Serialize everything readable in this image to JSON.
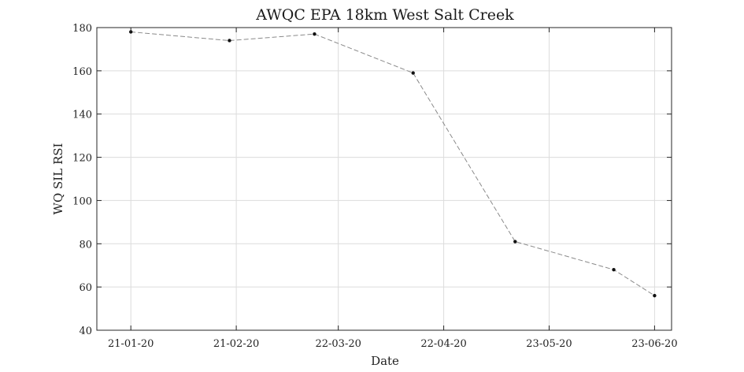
{
  "chart_data": {
    "type": "line",
    "title": "AWQC EPA 18km West Salt Creek",
    "xlabel": "Date",
    "ylabel": "WQ SIL RSI",
    "x_type": "date",
    "xlim": [
      "2020-01-11",
      "2020-06-28"
    ],
    "ylim": [
      40,
      180
    ],
    "grid": true,
    "x_ticks": [
      {
        "date": "2020-01-21",
        "label": "21-01-20"
      },
      {
        "date": "2020-02-21",
        "label": "21-02-20"
      },
      {
        "date": "2020-03-22",
        "label": "22-03-20"
      },
      {
        "date": "2020-04-22",
        "label": "22-04-20"
      },
      {
        "date": "2020-05-23",
        "label": "23-05-20"
      },
      {
        "date": "2020-06-23",
        "label": "23-06-20"
      }
    ],
    "y_ticks": [
      40,
      60,
      80,
      100,
      120,
      140,
      160,
      180
    ],
    "series": [
      {
        "x": [
          "2020-01-21",
          "2020-02-19",
          "2020-03-15",
          "2020-04-13",
          "2020-05-13",
          "2020-06-11",
          "2020-06-23"
        ],
        "y": [
          178,
          174,
          177,
          159,
          81,
          68,
          56
        ],
        "line_style": "dashed",
        "color": "#8a8a8a",
        "marker_color": "#111111"
      }
    ]
  }
}
